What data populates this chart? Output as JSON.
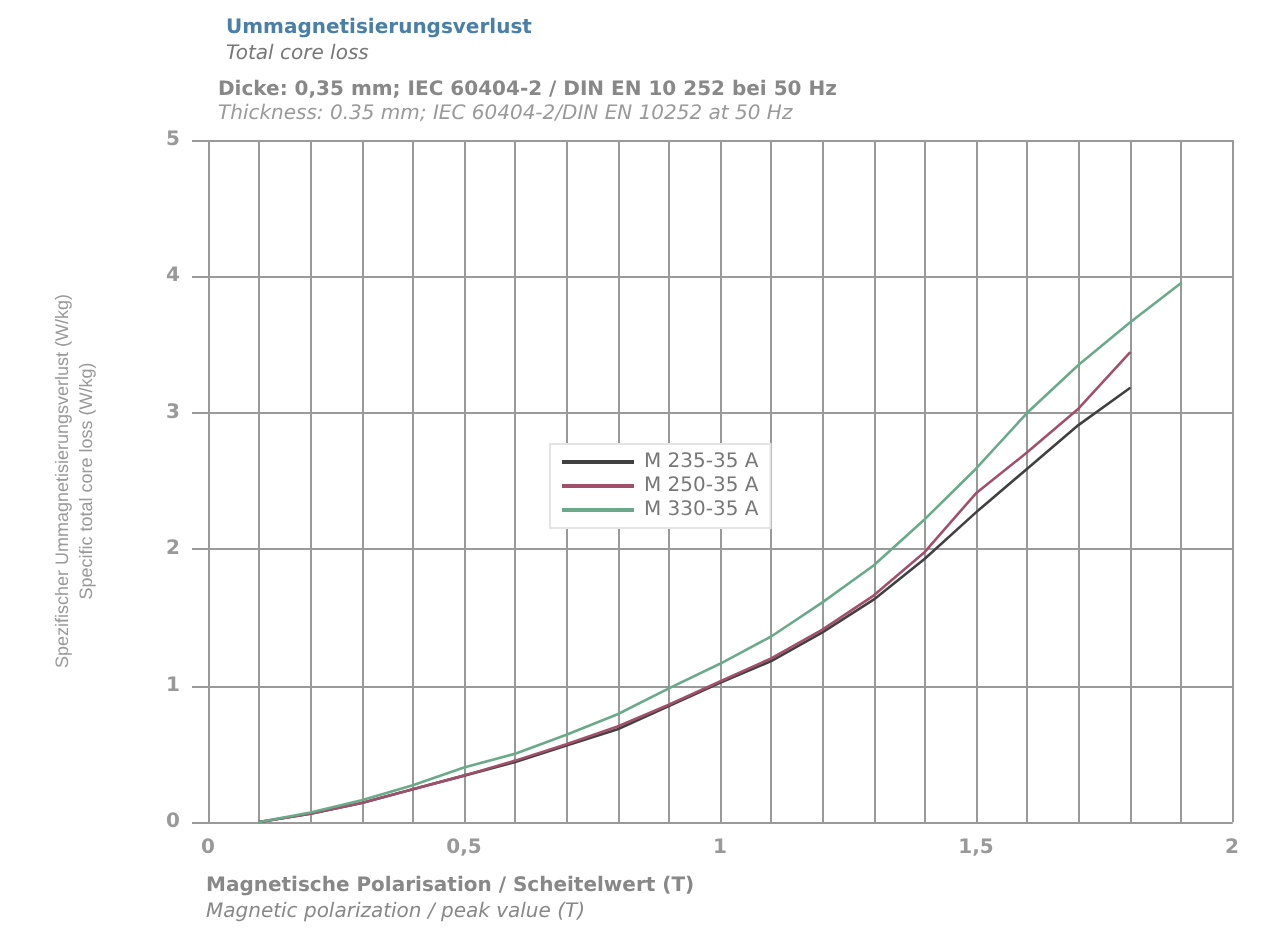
{
  "chart_data": {
    "type": "line",
    "title": "Ummagnetisierungsverlust",
    "subtitle": "Total core loss",
    "annotations": [
      "Dicke: 0,35 mm; IEC 60404-2 / DIN EN 10 252 bei 50 Hz",
      "Thickness: 0.35 mm; IEC 60404-2/DIN EN 10252 at 50 Hz"
    ],
    "xlabel": "Magnetische Polarisation / Scheitelwert (T)\nMagnetic polarization / peak value (T)",
    "ylabel": "Spezifischer Ummagnetisierungsverlust (W/kg)\nSpecific total core loss (W/kg)",
    "xlim": [
      0,
      2
    ],
    "xticks": [
      {
        "value": 0,
        "label": "0"
      },
      {
        "value": 0.1,
        "label": null
      },
      {
        "value": 0.2,
        "label": null
      },
      {
        "value": 0.3,
        "label": null
      },
      {
        "value": 0.4,
        "label": null
      },
      {
        "value": 0.5,
        "label": "0,5"
      },
      {
        "value": 0.6,
        "label": null
      },
      {
        "value": 0.7,
        "label": null
      },
      {
        "value": 0.8,
        "label": null
      },
      {
        "value": 0.9,
        "label": null
      },
      {
        "value": 1,
        "label": "1"
      },
      {
        "value": 1.1,
        "label": null
      },
      {
        "value": 1.2,
        "label": null
      },
      {
        "value": 1.3,
        "label": null
      },
      {
        "value": 1.4,
        "label": null
      },
      {
        "value": 1.5,
        "label": "1,5"
      },
      {
        "value": 1.6,
        "label": null
      },
      {
        "value": 1.7,
        "label": null
      },
      {
        "value": 1.8,
        "label": null
      },
      {
        "value": 1.9,
        "label": null
      },
      {
        "value": 2,
        "label": "2"
      }
    ],
    "ylim": [
      0,
      5
    ],
    "yticks": [
      0,
      1,
      2,
      3,
      4,
      5
    ],
    "grid": true,
    "legend": "center",
    "marker": "none",
    "line_style": "solid",
    "x": [
      0.1,
      0.2,
      0.3,
      0.4,
      0.5,
      0.6,
      0.7,
      0.8,
      0.9,
      1.0,
      1.1,
      1.2,
      1.3,
      1.4,
      1.5,
      1.6,
      1.7,
      1.8,
      1.9
    ],
    "series": [
      {
        "name": "M 235-35 A",
        "color": "#404040",
        "values": [
          0,
          0.06,
          0.14,
          0.24,
          0.34,
          0.44,
          0.56,
          0.68,
          0.85,
          1.02,
          1.18,
          1.39,
          1.63,
          1.93,
          2.27,
          2.59,
          2.91,
          3.18,
          null
        ]
      },
      {
        "name": "M 250-35 A",
        "color": "#a0506a",
        "values": [
          0,
          0.06,
          0.14,
          0.24,
          0.34,
          0.45,
          0.57,
          0.7,
          0.86,
          1.03,
          1.2,
          1.41,
          1.66,
          1.98,
          2.41,
          2.71,
          3.03,
          3.44,
          null
        ]
      },
      {
        "name": "M 330-35 A",
        "color": "#6aaa8a",
        "values": [
          0,
          0.07,
          0.16,
          0.27,
          0.4,
          0.5,
          0.64,
          0.79,
          0.98,
          1.16,
          1.36,
          1.61,
          1.88,
          2.22,
          2.59,
          3.0,
          3.35,
          3.66,
          3.95
        ]
      }
    ]
  }
}
